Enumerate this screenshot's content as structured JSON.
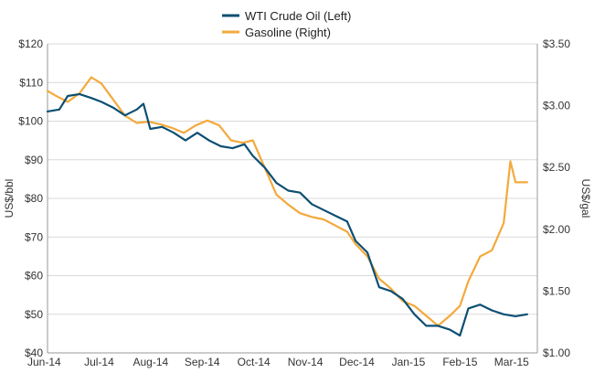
{
  "chart_data": {
    "type": "line",
    "title": "",
    "x_ticks": [
      "Jun-14",
      "Jul-14",
      "Aug-14",
      "Sep-14",
      "Oct-14",
      "Nov-14",
      "Dec-14",
      "Jan-15",
      "Feb-15",
      "Mar-15"
    ],
    "left_axis": {
      "label": "US$/bbl",
      "ylim": [
        40,
        120
      ],
      "ticks": [
        "$40",
        "$50",
        "$60",
        "$70",
        "$80",
        "$90",
        "$100",
        "$110",
        "$120"
      ]
    },
    "right_axis": {
      "label": "US$/gal",
      "ylim": [
        1.0,
        3.5
      ],
      "ticks": [
        "$1.00",
        "$1.50",
        "$2.00",
        "$2.50",
        "$3.00",
        "$3.50"
      ]
    },
    "grid": true,
    "legend_position": "top-center",
    "series": [
      {
        "name": "WTI Crude Oil  (Left)",
        "axis": "left",
        "color": "#0d4f73",
        "values": [
          {
            "x": "2014-06-01",
            "y": 102.5
          },
          {
            "x": "2014-06-08",
            "y": 103
          },
          {
            "x": "2014-06-13",
            "y": 106.5
          },
          {
            "x": "2014-06-20",
            "y": 107
          },
          {
            "x": "2014-06-27",
            "y": 106
          },
          {
            "x": "2014-07-03",
            "y": 105
          },
          {
            "x": "2014-07-10",
            "y": 103.5
          },
          {
            "x": "2014-07-17",
            "y": 101.5
          },
          {
            "x": "2014-07-24",
            "y": 103
          },
          {
            "x": "2014-07-28",
            "y": 104.5
          },
          {
            "x": "2014-08-01",
            "y": 98
          },
          {
            "x": "2014-08-08",
            "y": 98.5
          },
          {
            "x": "2014-08-15",
            "y": 97
          },
          {
            "x": "2014-08-22",
            "y": 95
          },
          {
            "x": "2014-08-29",
            "y": 97
          },
          {
            "x": "2014-09-05",
            "y": 95
          },
          {
            "x": "2014-09-12",
            "y": 93.5
          },
          {
            "x": "2014-09-19",
            "y": 93
          },
          {
            "x": "2014-09-26",
            "y": 94
          },
          {
            "x": "2014-10-01",
            "y": 91
          },
          {
            "x": "2014-10-08",
            "y": 88
          },
          {
            "x": "2014-10-15",
            "y": 84
          },
          {
            "x": "2014-10-22",
            "y": 82
          },
          {
            "x": "2014-10-29",
            "y": 81.5
          },
          {
            "x": "2014-11-05",
            "y": 78.5
          },
          {
            "x": "2014-11-12",
            "y": 77
          },
          {
            "x": "2014-11-19",
            "y": 75.5
          },
          {
            "x": "2014-11-26",
            "y": 74
          },
          {
            "x": "2014-12-01",
            "y": 69
          },
          {
            "x": "2014-12-08",
            "y": 66
          },
          {
            "x": "2014-12-15",
            "y": 57
          },
          {
            "x": "2014-12-22",
            "y": 56
          },
          {
            "x": "2014-12-29",
            "y": 54
          },
          {
            "x": "2015-01-05",
            "y": 50
          },
          {
            "x": "2015-01-12",
            "y": 47
          },
          {
            "x": "2015-01-19",
            "y": 47
          },
          {
            "x": "2015-01-26",
            "y": 46
          },
          {
            "x": "2015-02-01",
            "y": 44.5
          },
          {
            "x": "2015-02-06",
            "y": 51.5
          },
          {
            "x": "2015-02-13",
            "y": 52.5
          },
          {
            "x": "2015-02-20",
            "y": 51
          },
          {
            "x": "2015-02-27",
            "y": 50
          },
          {
            "x": "2015-03-06",
            "y": 49.5
          },
          {
            "x": "2015-03-13",
            "y": 50
          }
        ]
      },
      {
        "name": "Gasoline  (Right)",
        "axis": "right",
        "color": "#f4a93c",
        "values": [
          {
            "x": "2014-06-01",
            "y": 3.12
          },
          {
            "x": "2014-06-06",
            "y": 3.08
          },
          {
            "x": "2014-06-13",
            "y": 3.03
          },
          {
            "x": "2014-06-20",
            "y": 3.1
          },
          {
            "x": "2014-06-27",
            "y": 3.23
          },
          {
            "x": "2014-07-03",
            "y": 3.18
          },
          {
            "x": "2014-07-10",
            "y": 3.05
          },
          {
            "x": "2014-07-17",
            "y": 2.92
          },
          {
            "x": "2014-07-24",
            "y": 2.86
          },
          {
            "x": "2014-07-31",
            "y": 2.87
          },
          {
            "x": "2014-08-07",
            "y": 2.85
          },
          {
            "x": "2014-08-14",
            "y": 2.82
          },
          {
            "x": "2014-08-21",
            "y": 2.78
          },
          {
            "x": "2014-08-28",
            "y": 2.84
          },
          {
            "x": "2014-09-04",
            "y": 2.88
          },
          {
            "x": "2014-09-11",
            "y": 2.84
          },
          {
            "x": "2014-09-18",
            "y": 2.72
          },
          {
            "x": "2014-09-25",
            "y": 2.7
          },
          {
            "x": "2014-10-01",
            "y": 2.72
          },
          {
            "x": "2014-10-08",
            "y": 2.5
          },
          {
            "x": "2014-10-15",
            "y": 2.28
          },
          {
            "x": "2014-10-22",
            "y": 2.2
          },
          {
            "x": "2014-10-29",
            "y": 2.13
          },
          {
            "x": "2014-11-05",
            "y": 2.1
          },
          {
            "x": "2014-11-12",
            "y": 2.08
          },
          {
            "x": "2014-11-19",
            "y": 2.03
          },
          {
            "x": "2014-11-26",
            "y": 1.98
          },
          {
            "x": "2014-12-01",
            "y": 1.88
          },
          {
            "x": "2014-12-08",
            "y": 1.78
          },
          {
            "x": "2014-12-15",
            "y": 1.6
          },
          {
            "x": "2014-12-22",
            "y": 1.52
          },
          {
            "x": "2014-12-29",
            "y": 1.42
          },
          {
            "x": "2015-01-05",
            "y": 1.38
          },
          {
            "x": "2015-01-12",
            "y": 1.3
          },
          {
            "x": "2015-01-19",
            "y": 1.22
          },
          {
            "x": "2015-01-26",
            "y": 1.3
          },
          {
            "x": "2015-02-01",
            "y": 1.38
          },
          {
            "x": "2015-02-06",
            "y": 1.58
          },
          {
            "x": "2015-02-13",
            "y": 1.78
          },
          {
            "x": "2015-02-20",
            "y": 1.83
          },
          {
            "x": "2015-02-27",
            "y": 2.05
          },
          {
            "x": "2015-03-03",
            "y": 2.55
          },
          {
            "x": "2015-03-06",
            "y": 2.38
          },
          {
            "x": "2015-03-13",
            "y": 2.38
          }
        ]
      }
    ]
  },
  "colors": {
    "background": "#ffffff",
    "grid": "#d9d9d9",
    "axis": "#999999",
    "text": "#333333"
  }
}
